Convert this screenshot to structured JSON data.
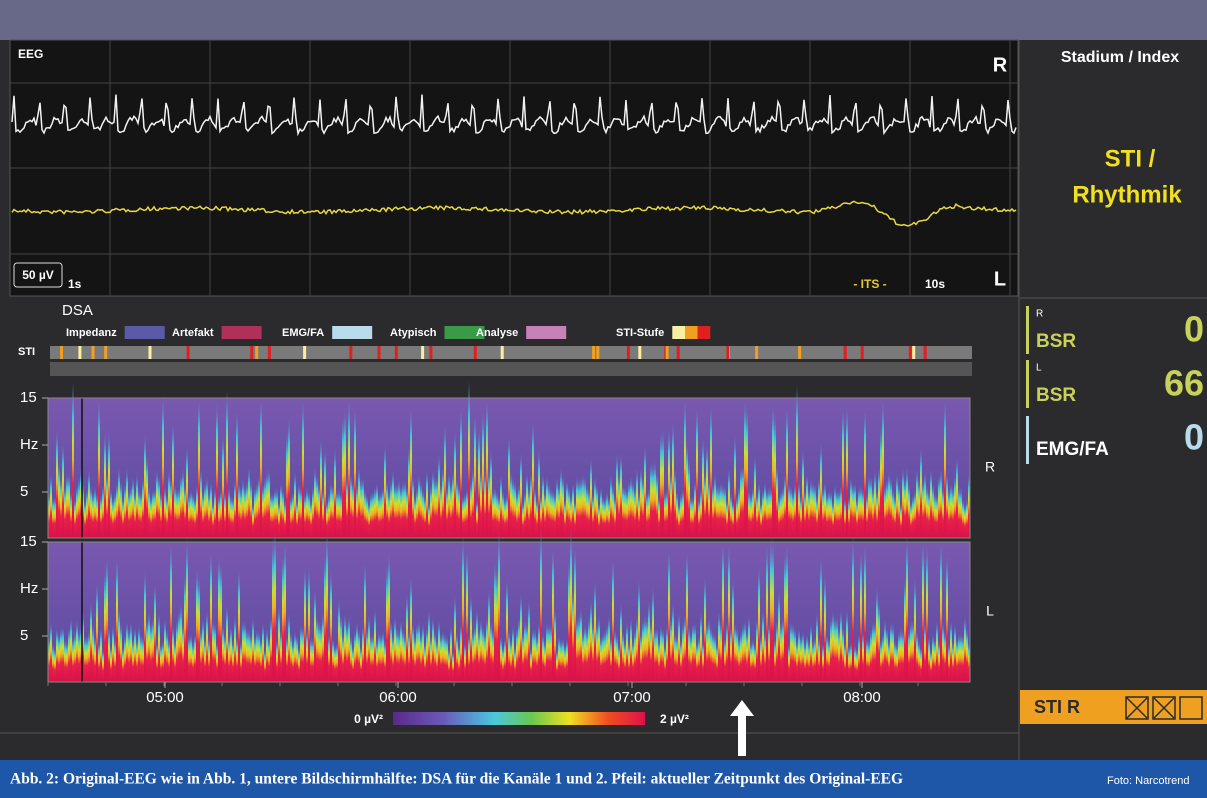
{
  "eeg": {
    "label": "EEG",
    "channel_top": "R",
    "channel_bottom": "L",
    "scale": "50 µV",
    "time_start": "1s",
    "marker": "- ITS -",
    "time_end": "10s"
  },
  "side": {
    "title": "Stadium / Index",
    "stage_line1": "STI /",
    "stage_line2": "Rhythmik"
  },
  "metrics": [
    {
      "channel": "R",
      "name": "BSR",
      "value": "0"
    },
    {
      "channel": "L",
      "name": "BSR",
      "value": "66"
    },
    {
      "name": "EMG/FA",
      "value": "0"
    }
  ],
  "status": {
    "label": "STI R"
  },
  "dsa": {
    "title": "DSA",
    "legend": [
      "Impedanz",
      "Artefakt",
      "EMG/FA",
      "Atypisch",
      "Analyse",
      "STI-Stufe"
    ],
    "sti_label": "STI",
    "y_labels": [
      "15",
      "Hz",
      "5"
    ],
    "channels": [
      "R",
      "L"
    ],
    "time_labels": [
      "05:00",
      "06:00",
      "07:00",
      "08:00"
    ],
    "colorbar_min": "0 µV²",
    "colorbar_max": "2 µV²"
  },
  "caption": {
    "text": "Abb. 2: Original-EEG wie in Abb. 1, untere Bildschirmhälfte: DSA für die Kanäle 1 und 2. Pfeil: aktueller Zeitpunkt des Original-EEG",
    "credit": "Foto: Narcotrend"
  }
}
